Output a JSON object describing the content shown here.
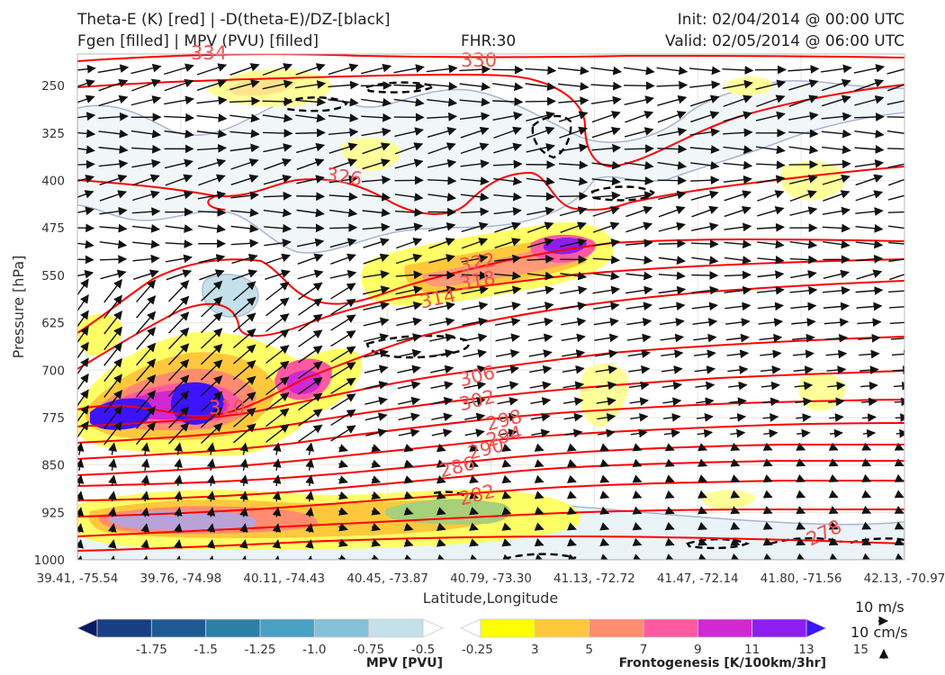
{
  "header": {
    "title_left_1": "Theta-E (K) [red] | -D(theta-E)/DZ-[black]",
    "title_left_2": "Fgen [filled] | MPV (PVU) [filled]",
    "fhr": "FHR:30",
    "init": "Init: 02/04/2014 @ 00:00 UTC",
    "valid": "Valid: 02/05/2014 @ 06:00 UTC"
  },
  "colors": {
    "theta_e": "#ff0000",
    "theta_e_label": "#f05050",
    "stability": "#000000",
    "wind": "#111111",
    "mpv_contour": "#a8b4d4"
  },
  "chart_data": {
    "type": "cross-section",
    "title": "Theta-E (K) [red] | -D(theta-E)/DZ-[black] / Fgen [filled] | MPV (PVU) [filled]",
    "ylabel": "Pressure [hPa]",
    "xlabel": "Latitude,Longitude",
    "y_axis": {
      "inverted": true,
      "ylim": [
        1000,
        200
      ],
      "ticks": [
        "250",
        "325",
        "400",
        "475",
        "550",
        "625",
        "700",
        "775",
        "850",
        "925",
        "1000"
      ]
    },
    "x_axis": {
      "ticks": [
        "39.41, -75.54",
        "39.76, -74.98",
        "40.11, -74.43",
        "40.45, -73.87",
        "40.79, -73.30",
        "41.13, -72.72",
        "41.47, -72.14",
        "41.80, -71.56",
        "42.13, -70.97"
      ]
    },
    "theta_e_contour_labels": [
      "334",
      "330",
      "326",
      "322",
      "318",
      "314",
      "310",
      "306",
      "302",
      "298",
      "294",
      "290",
      "286",
      "282",
      "278"
    ],
    "mpv_colorbar": {
      "label": "MPV [PVU]",
      "ticks": [
        "-1.75",
        "-1.5",
        "-1.25",
        "-1.0",
        "-0.75",
        "-0.5",
        "-0.25"
      ],
      "colors": [
        "#0a1a66",
        "#173f82",
        "#1f5a92",
        "#2c7fa5",
        "#4aa0c2",
        "#86c0d6",
        "#c4e0ea",
        "#ffffff"
      ]
    },
    "fgen_colorbar": {
      "label": "Frontogenesis [K/100km/3hr]",
      "ticks": [
        "3",
        "5",
        "7",
        "9",
        "11",
        "13",
        "15"
      ],
      "colors": [
        "#ffffff",
        "#ffff00",
        "#ffc83c",
        "#ff8c6e",
        "#ff5aa0",
        "#d228d2",
        "#8c1ef0",
        "#3c14ff"
      ]
    },
    "wind_reference": {
      "horizontal": "10 m/s",
      "vertical": "10 cm/s"
    },
    "grid": true,
    "legend_placement": "bottom"
  }
}
